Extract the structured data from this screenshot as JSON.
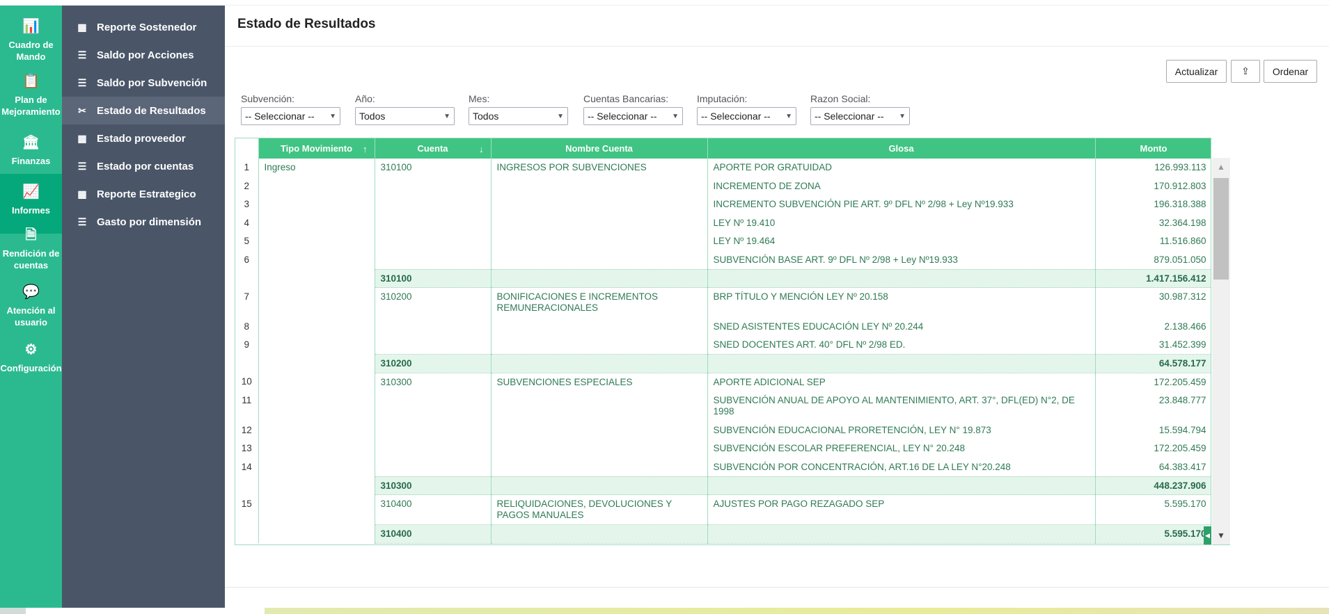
{
  "rail": [
    {
      "label": "Cuadro de Mando",
      "icon": "bar-chart-icon",
      "glyph": "📊"
    },
    {
      "label": "Plan de Mejoramiento",
      "icon": "clipboard-icon",
      "glyph": "📋"
    },
    {
      "label": "Finanzas",
      "icon": "bank-icon",
      "glyph": "🏛"
    },
    {
      "label": "Informes",
      "icon": "presentation-icon",
      "glyph": "📈",
      "active": true
    },
    {
      "label": "Rendición de cuentas",
      "icon": "csv-file-icon",
      "glyph": "🗎"
    },
    {
      "label": "Atención al usuario",
      "icon": "chat-icon",
      "glyph": "💬"
    },
    {
      "label": "Configuración",
      "icon": "gear-icon",
      "glyph": "⚙"
    }
  ],
  "nav": [
    {
      "label": "Reporte Sostenedor",
      "icon": "grid-icon",
      "glyph": "▦"
    },
    {
      "label": "Saldo por Acciones",
      "icon": "list-icon",
      "glyph": "☰"
    },
    {
      "label": "Saldo por Subvención",
      "icon": "list-icon",
      "glyph": "☰"
    },
    {
      "label": "Estado de Resultados",
      "icon": "scissors-icon",
      "glyph": "✂",
      "active": true
    },
    {
      "label": "Estado proveedor",
      "icon": "grid-icon",
      "glyph": "▦"
    },
    {
      "label": "Estado por cuentas",
      "icon": "list-icon",
      "glyph": "☰"
    },
    {
      "label": "Reporte Estrategico",
      "icon": "grid-icon",
      "glyph": "▦"
    },
    {
      "label": "Gasto por dimensión",
      "icon": "list-icon",
      "glyph": "☰"
    }
  ],
  "page": {
    "title": "Estado de Resultados"
  },
  "toolbar": {
    "refresh": "Actualizar",
    "export_icon": "export-icon",
    "sort": "Ordenar"
  },
  "filters": [
    {
      "label": "Subvención:",
      "value": "-- Seleccionar --"
    },
    {
      "label": "Año:",
      "value": "Todos"
    },
    {
      "label": "Mes:",
      "value": "Todos"
    },
    {
      "label": "Cuentas Bancarias:",
      "value": "-- Seleccionar --"
    },
    {
      "label": "Imputación:",
      "value": "-- Seleccionar --"
    },
    {
      "label": "Razon Social:",
      "value": "-- Seleccionar --"
    }
  ],
  "table": {
    "columns": [
      "",
      "Tipo Movimiento",
      "Cuenta",
      "Nombre Cuenta",
      "Glosa",
      "Monto"
    ],
    "tipo": "Ingreso",
    "groups": [
      {
        "cuenta": "310100",
        "nombre": "INGRESOS POR SUBVENCIONES",
        "total": "1.417.156.412",
        "rows": [
          {
            "n": "1",
            "glosa": "APORTE POR GRATUIDAD",
            "monto": "126.993.113"
          },
          {
            "n": "2",
            "glosa": "INCREMENTO DE ZONA",
            "monto": "170.912.803"
          },
          {
            "n": "3",
            "glosa": "INCREMENTO SUBVENCIÓN PIE ART. 9º DFL Nº 2/98 + Ley Nº19.933",
            "monto": "196.318.388"
          },
          {
            "n": "4",
            "glosa": "LEY Nº 19.410",
            "monto": "32.364.198"
          },
          {
            "n": "5",
            "glosa": "LEY Nº 19.464",
            "monto": "11.516.860"
          },
          {
            "n": "6",
            "glosa": "SUBVENCIÓN BASE ART. 9º DFL Nº 2/98 + Ley Nº19.933",
            "monto": "879.051.050"
          }
        ]
      },
      {
        "cuenta": "310200",
        "nombre": "BONIFICACIONES E INCREMENTOS REMUNERACIONALES",
        "total": "64.578.177",
        "rows": [
          {
            "n": "7",
            "glosa": "BRP TÍTULO Y MENCIÓN LEY Nº 20.158",
            "monto": "30.987.312",
            "two": true
          },
          {
            "n": "8",
            "glosa": "SNED ASISTENTES EDUCACIÓN LEY Nº 20.244",
            "monto": "2.138.466"
          },
          {
            "n": "9",
            "glosa": "SNED DOCENTES ART. 40° DFL Nº 2/98 ED.",
            "monto": "31.452.399"
          }
        ]
      },
      {
        "cuenta": "310300",
        "nombre": "SUBVENCIONES ESPECIALES",
        "total": "448.237.906",
        "rows": [
          {
            "n": "10",
            "glosa": "APORTE ADICIONAL SEP",
            "monto": "172.205.459"
          },
          {
            "n": "11",
            "glosa": "SUBVENCIÓN ANUAL DE APOYO AL MANTENIMIENTO, ART. 37°, DFL(ED) N°2, DE 1998",
            "monto": "23.848.777",
            "two": true
          },
          {
            "n": "12",
            "glosa": "SUBVENCIÓN EDUCACIONAL PRORETENCIÓN, LEY N° 19.873",
            "monto": "15.594.794"
          },
          {
            "n": "13",
            "glosa": "SUBVENCIÓN ESCOLAR PREFERENCIAL, LEY N° 20.248",
            "monto": "172.205.459"
          },
          {
            "n": "14",
            "glosa": "SUBVENCIÓN POR CONCENTRACIÓN, ART.16 DE LA LEY N°20.248",
            "monto": "64.383.417"
          }
        ]
      },
      {
        "cuenta": "310400",
        "nombre": "RELIQUIDACIONES, DEVOLUCIONES Y PAGOS MANUALES",
        "total": "5.595.170",
        "rows": [
          {
            "n": "15",
            "glosa": "AJUSTES POR PAGO REZAGADO SEP",
            "monto": "5.595.170",
            "two": true
          }
        ]
      }
    ]
  },
  "colors": {
    "rail": "#2bba8f",
    "nav": "#4a5668",
    "header": "#40c483",
    "subtotal": "#e4f5ec",
    "text": "#2f7a55"
  }
}
